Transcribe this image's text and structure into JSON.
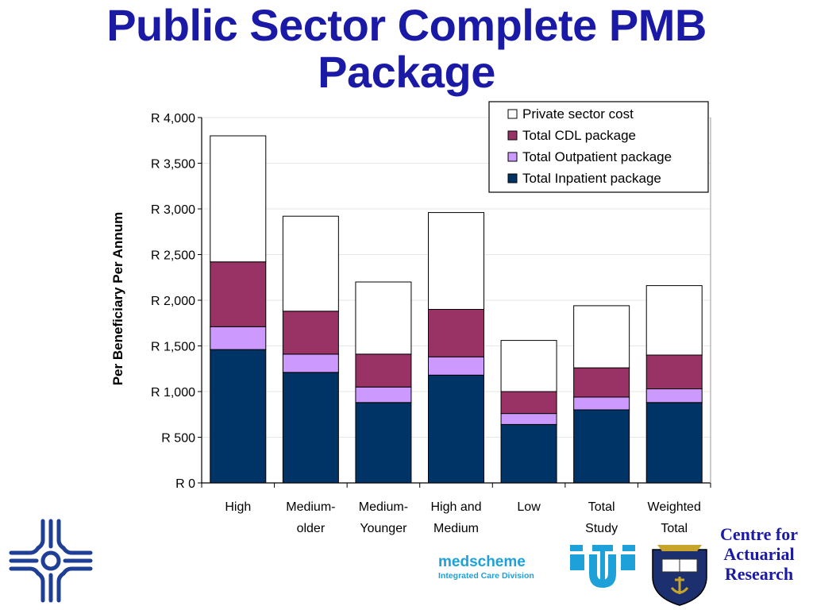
{
  "slide": {
    "title_line1": "Public Sector Complete PMB",
    "title_line2": "Package"
  },
  "chart_data": {
    "type": "bar",
    "stacked": true,
    "title": "",
    "xlabel": "",
    "ylabel": "Per Beneficiary Per Annum",
    "ylim": [
      0,
      4000
    ],
    "yticks": [
      "R 0",
      "R 500",
      "R 1,000",
      "R 1,500",
      "R 2,000",
      "R 2,500",
      "R 3,000",
      "R 3,500",
      "R 4,000"
    ],
    "ytick_values": [
      0,
      500,
      1000,
      1500,
      2000,
      2500,
      3000,
      3500,
      4000
    ],
    "grid": true,
    "legend_position": "top-right",
    "categories": [
      [
        "High"
      ],
      [
        "Medium-",
        "older"
      ],
      [
        "Medium-",
        "Younger"
      ],
      [
        "High and",
        "Medium"
      ],
      [
        "Low"
      ],
      [
        "Total",
        "Study"
      ],
      [
        "Weighted",
        "Total"
      ]
    ],
    "series": [
      {
        "name": "Total Inpatient package",
        "color": "#003366",
        "values": [
          1460,
          1210,
          880,
          1180,
          640,
          800,
          880
        ]
      },
      {
        "name": "Total Outpatient package",
        "color": "#cc99ff",
        "values": [
          250,
          200,
          170,
          200,
          120,
          140,
          150
        ]
      },
      {
        "name": "Total CDL package",
        "color": "#993366",
        "values": [
          710,
          470,
          360,
          520,
          240,
          320,
          370
        ]
      },
      {
        "name": "Private sector cost",
        "color": "#ffffff",
        "values": [
          1380,
          1040,
          790,
          1060,
          560,
          680,
          760
        ]
      }
    ],
    "legend_order": [
      "Private sector cost",
      "Total CDL package",
      "Total Outpatient package",
      "Total Inpatient package"
    ]
  },
  "logos": {
    "medscheme_name": "medscheme",
    "medscheme_division": "Integrated Care Division",
    "cfar_line1": "Centre for",
    "cfar_line2": "Actuarial",
    "cfar_line3": "Research",
    "left_logo_icon": "cross-emblem-icon",
    "middle_logo_icon": "ut-emblem-icon",
    "crest_icon": "university-crest-icon"
  }
}
